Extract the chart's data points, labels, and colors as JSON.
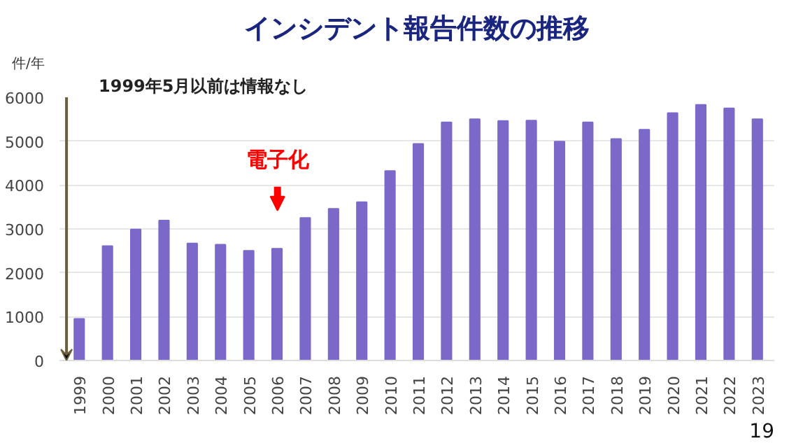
{
  "chart_data": {
    "type": "bar",
    "title": "インシデント報告件数の推移",
    "ylabel": "件/年",
    "categories": [
      "1999",
      "2000",
      "2001",
      "2002",
      "2003",
      "2004",
      "2005",
      "2006",
      "2007",
      "2008",
      "2009",
      "2010",
      "2011",
      "2012",
      "2013",
      "2014",
      "2015",
      "2016",
      "2017",
      "2018",
      "2019",
      "2020",
      "2021",
      "2022",
      "2023"
    ],
    "values": [
      950,
      2610,
      2990,
      3190,
      2670,
      2640,
      2500,
      2550,
      3250,
      3460,
      3610,
      4320,
      4940,
      5430,
      5500,
      5460,
      5470,
      4990,
      5430,
      5050,
      5260,
      5640,
      5830,
      5750,
      5500
    ],
    "color": "#7b68c8",
    "ylim": [
      0,
      6000
    ],
    "yticks": [
      0,
      1000,
      2000,
      3000,
      4000,
      5000,
      6000
    ],
    "grid": "y",
    "annotations": [
      "1999年5月以前は情報なし",
      "電子化",
      "19"
    ]
  }
}
